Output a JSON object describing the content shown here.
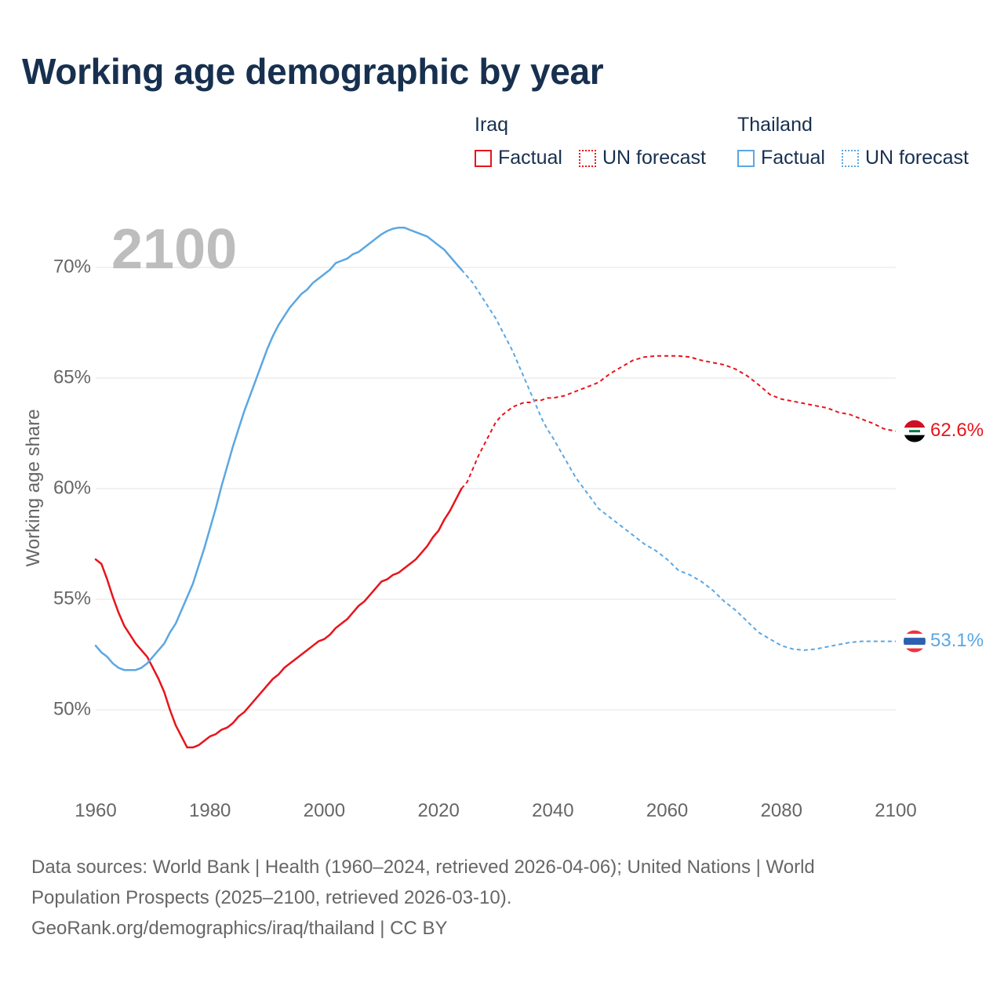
{
  "title": "Working age demographic by year",
  "legend": {
    "groups": [
      {
        "name": "Iraq",
        "factual_label": "Factual",
        "forecast_label": "UN forecast",
        "color": "#e8141c"
      },
      {
        "name": "Thailand",
        "factual_label": "Factual",
        "forecast_label": "UN forecast",
        "color": "#5ba7e2"
      }
    ]
  },
  "footer": {
    "line1": "Data sources: World Bank | Health (1960–2024, retrieved 2026-04-06); United Nations | World",
    "line2": "Population Prospects (2025–2100, retrieved 2026-03-10).",
    "line3": "GeoRank.org/demographics/iraq/thailand | CC BY"
  },
  "chart_data": {
    "type": "line",
    "title": "Working age demographic by year",
    "year_label": "2100",
    "xlabel": "",
    "ylabel": "Working age share",
    "xlim": [
      1960,
      2100
    ],
    "ylim": [
      47,
      73
    ],
    "x_ticks": [
      1960,
      1980,
      2000,
      2020,
      2040,
      2060,
      2080,
      2100
    ],
    "x_tick_labels": [
      "1960",
      "1980",
      "2000",
      "2020",
      "2040",
      "2060",
      "2080",
      "2100"
    ],
    "y_ticks": [
      50,
      55,
      60,
      65,
      70
    ],
    "y_tick_labels": [
      "50%",
      "55%",
      "60%",
      "65%",
      "70%"
    ],
    "factual_end_year": 2024,
    "series": [
      {
        "name": "Iraq",
        "color": "#e8141c",
        "end_label": "62.6%",
        "end_flag": "iraq-flag",
        "x": [
          1960,
          1961,
          1962,
          1963,
          1964,
          1965,
          1966,
          1967,
          1968,
          1969,
          1970,
          1971,
          1972,
          1973,
          1974,
          1975,
          1976,
          1977,
          1978,
          1979,
          1980,
          1981,
          1982,
          1983,
          1984,
          1985,
          1986,
          1987,
          1988,
          1989,
          1990,
          1991,
          1992,
          1993,
          1994,
          1995,
          1996,
          1997,
          1998,
          1999,
          2000,
          2001,
          2002,
          2003,
          2004,
          2005,
          2006,
          2007,
          2008,
          2009,
          2010,
          2011,
          2012,
          2013,
          2014,
          2015,
          2016,
          2017,
          2018,
          2019,
          2020,
          2021,
          2022,
          2023,
          2024,
          2025,
          2026,
          2027,
          2028,
          2029,
          2030,
          2031,
          2032,
          2033,
          2034,
          2035,
          2036,
          2037,
          2038,
          2039,
          2040,
          2042,
          2044,
          2046,
          2048,
          2050,
          2052,
          2054,
          2056,
          2058,
          2060,
          2062,
          2064,
          2066,
          2068,
          2070,
          2072,
          2074,
          2076,
          2078,
          2080,
          2082,
          2084,
          2086,
          2088,
          2090,
          2092,
          2094,
          2096,
          2098,
          2100
        ],
        "y": [
          56.8,
          56.6,
          55.9,
          55.1,
          54.4,
          53.8,
          53.4,
          53.0,
          52.7,
          52.4,
          51.9,
          51.4,
          50.8,
          50.0,
          49.3,
          48.8,
          48.3,
          48.3,
          48.4,
          48.6,
          48.8,
          48.9,
          49.1,
          49.2,
          49.4,
          49.7,
          49.9,
          50.2,
          50.5,
          50.8,
          51.1,
          51.4,
          51.6,
          51.9,
          52.1,
          52.3,
          52.5,
          52.7,
          52.9,
          53.1,
          53.2,
          53.4,
          53.7,
          53.9,
          54.1,
          54.4,
          54.7,
          54.9,
          55.2,
          55.5,
          55.8,
          55.9,
          56.1,
          56.2,
          56.4,
          56.6,
          56.8,
          57.1,
          57.4,
          57.8,
          58.1,
          58.6,
          59.0,
          59.5,
          60.0,
          60.3,
          60.9,
          61.5,
          62.0,
          62.5,
          63.0,
          63.3,
          63.5,
          63.7,
          63.8,
          63.9,
          63.9,
          64.0,
          64.0,
          64.1,
          64.1,
          64.2,
          64.4,
          64.6,
          64.8,
          65.2,
          65.5,
          65.8,
          65.95,
          66.0,
          66.0,
          66.0,
          65.95,
          65.8,
          65.7,
          65.6,
          65.4,
          65.1,
          64.7,
          64.25,
          64.05,
          63.95,
          63.85,
          63.75,
          63.65,
          63.45,
          63.35,
          63.15,
          62.95,
          62.7,
          62.6
        ]
      },
      {
        "name": "Thailand",
        "color": "#5ba7e2",
        "end_label": "53.1%",
        "end_flag": "thailand-flag",
        "x": [
          1960,
          1961,
          1962,
          1963,
          1964,
          1965,
          1966,
          1967,
          1968,
          1969,
          1970,
          1971,
          1972,
          1973,
          1974,
          1975,
          1976,
          1977,
          1978,
          1979,
          1980,
          1981,
          1982,
          1983,
          1984,
          1985,
          1986,
          1987,
          1988,
          1989,
          1990,
          1991,
          1992,
          1993,
          1994,
          1995,
          1996,
          1997,
          1998,
          1999,
          2000,
          2001,
          2002,
          2003,
          2004,
          2005,
          2006,
          2007,
          2008,
          2009,
          2010,
          2011,
          2012,
          2013,
          2014,
          2015,
          2016,
          2017,
          2018,
          2019,
          2020,
          2021,
          2022,
          2023,
          2024,
          2025,
          2026,
          2027,
          2028,
          2029,
          2030,
          2031,
          2032,
          2033,
          2034,
          2035,
          2036,
          2037,
          2038,
          2039,
          2040,
          2042,
          2044,
          2046,
          2048,
          2050,
          2052,
          2054,
          2056,
          2058,
          2060,
          2062,
          2064,
          2066,
          2068,
          2070,
          2072,
          2074,
          2076,
          2078,
          2080,
          2082,
          2084,
          2086,
          2088,
          2090,
          2092,
          2094,
          2096,
          2098,
          2100
        ],
        "y": [
          52.9,
          52.6,
          52.4,
          52.1,
          51.9,
          51.8,
          51.8,
          51.8,
          51.9,
          52.1,
          52.4,
          52.7,
          53.0,
          53.5,
          53.9,
          54.5,
          55.1,
          55.7,
          56.5,
          57.3,
          58.2,
          59.1,
          60.1,
          61.0,
          61.9,
          62.7,
          63.5,
          64.2,
          64.9,
          65.6,
          66.3,
          66.9,
          67.4,
          67.8,
          68.2,
          68.5,
          68.8,
          69.0,
          69.3,
          69.5,
          69.7,
          69.9,
          70.2,
          70.3,
          70.4,
          70.6,
          70.7,
          70.9,
          71.1,
          71.3,
          71.5,
          71.65,
          71.75,
          71.8,
          71.8,
          71.7,
          71.6,
          71.5,
          71.4,
          71.2,
          71.0,
          70.8,
          70.5,
          70.2,
          69.9,
          69.6,
          69.3,
          68.9,
          68.5,
          68.1,
          67.7,
          67.2,
          66.7,
          66.2,
          65.6,
          65.0,
          64.4,
          63.8,
          63.2,
          62.7,
          62.3,
          61.4,
          60.5,
          59.8,
          59.1,
          58.7,
          58.3,
          57.9,
          57.5,
          57.2,
          56.8,
          56.3,
          56.1,
          55.8,
          55.4,
          54.9,
          54.5,
          54.0,
          53.5,
          53.2,
          52.9,
          52.75,
          52.7,
          52.75,
          52.85,
          52.95,
          53.05,
          53.1,
          53.1,
          53.1,
          53.1
        ]
      }
    ]
  }
}
